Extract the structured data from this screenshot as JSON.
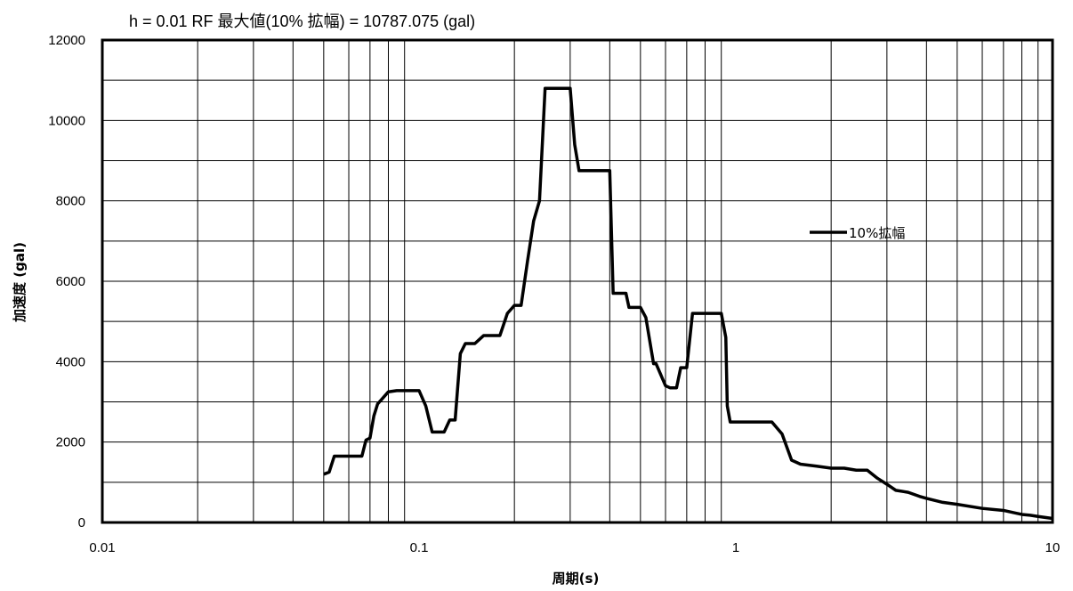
{
  "chart_data": {
    "type": "line",
    "title": "h = 0.01 RF 最大値(10% 拡幅) = 10787.075 (gal)",
    "xlabel": "周期(s)",
    "ylabel": "加速度 (gal)",
    "x_scale": "log",
    "xlim": [
      0.01,
      10
    ],
    "ylim": [
      0,
      12000
    ],
    "x_ticks": [
      "0.01",
      "0.1",
      "1",
      "10"
    ],
    "y_ticks": [
      "0",
      "2000",
      "4000",
      "6000",
      "8000",
      "10000",
      "12000"
    ],
    "grid": true,
    "legend_position": "right",
    "line_color": "#000000",
    "series": [
      {
        "name": "10%拡幅",
        "x": [
          0.05,
          0.052,
          0.054,
          0.06,
          0.066,
          0.068,
          0.07,
          0.072,
          0.074,
          0.076,
          0.08,
          0.085,
          0.09,
          0.1,
          0.105,
          0.11,
          0.12,
          0.125,
          0.13,
          0.135,
          0.14,
          0.15,
          0.16,
          0.17,
          0.18,
          0.19,
          0.2,
          0.21,
          0.22,
          0.23,
          0.24,
          0.25,
          0.3,
          0.31,
          0.32,
          0.35,
          0.4,
          0.41,
          0.45,
          0.46,
          0.5,
          0.52,
          0.55,
          0.56,
          0.6,
          0.62,
          0.65,
          0.67,
          0.7,
          0.73,
          0.8,
          0.9,
          0.93,
          0.94,
          0.96,
          1.0,
          1.1,
          1.2,
          1.3,
          1.4,
          1.5,
          1.6,
          1.8,
          2.0,
          2.2,
          2.4,
          2.6,
          2.8,
          3.0,
          3.2,
          3.5,
          3.8,
          4.0,
          4.5,
          5.0,
          6.0,
          7.0,
          8.0,
          8.5,
          9.0,
          10.0
        ],
        "y": [
          1200,
          1250,
          1650,
          1650,
          1650,
          2050,
          2100,
          2650,
          2950,
          3050,
          3250,
          3280,
          3280,
          3280,
          2900,
          2250,
          2250,
          2550,
          2550,
          4200,
          4450,
          4450,
          4650,
          4650,
          4650,
          5200,
          5400,
          5400,
          6500,
          7500,
          8000,
          10800,
          10800,
          9400,
          8750,
          8750,
          8750,
          5700,
          5700,
          5350,
          5350,
          5100,
          3950,
          3950,
          3400,
          3350,
          3350,
          3850,
          3850,
          5200,
          5200,
          5200,
          4600,
          2900,
          2500,
          2500,
          2500,
          2500,
          2500,
          2200,
          1550,
          1450,
          1400,
          1350,
          1350,
          1300,
          1300,
          1100,
          950,
          800,
          750,
          650,
          600,
          500,
          450,
          350,
          300,
          200,
          180,
          150,
          100
        ]
      }
    ]
  }
}
